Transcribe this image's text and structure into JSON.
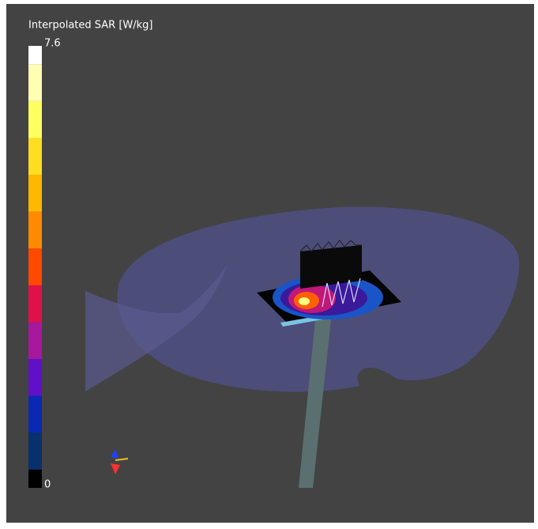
{
  "colorbar": {
    "title": "Interpolated SAR [W/kg]",
    "max": 7.6,
    "min": 0,
    "colors": [
      "#ffffff",
      "#ffffb4",
      "#ffff60",
      "#ffdd20",
      "#ffb800",
      "#ff8a00",
      "#ff4800",
      "#e0104a",
      "#a8189e",
      "#6010c8",
      "#0a28b4",
      "#08306c",
      "#000000"
    ]
  }
}
